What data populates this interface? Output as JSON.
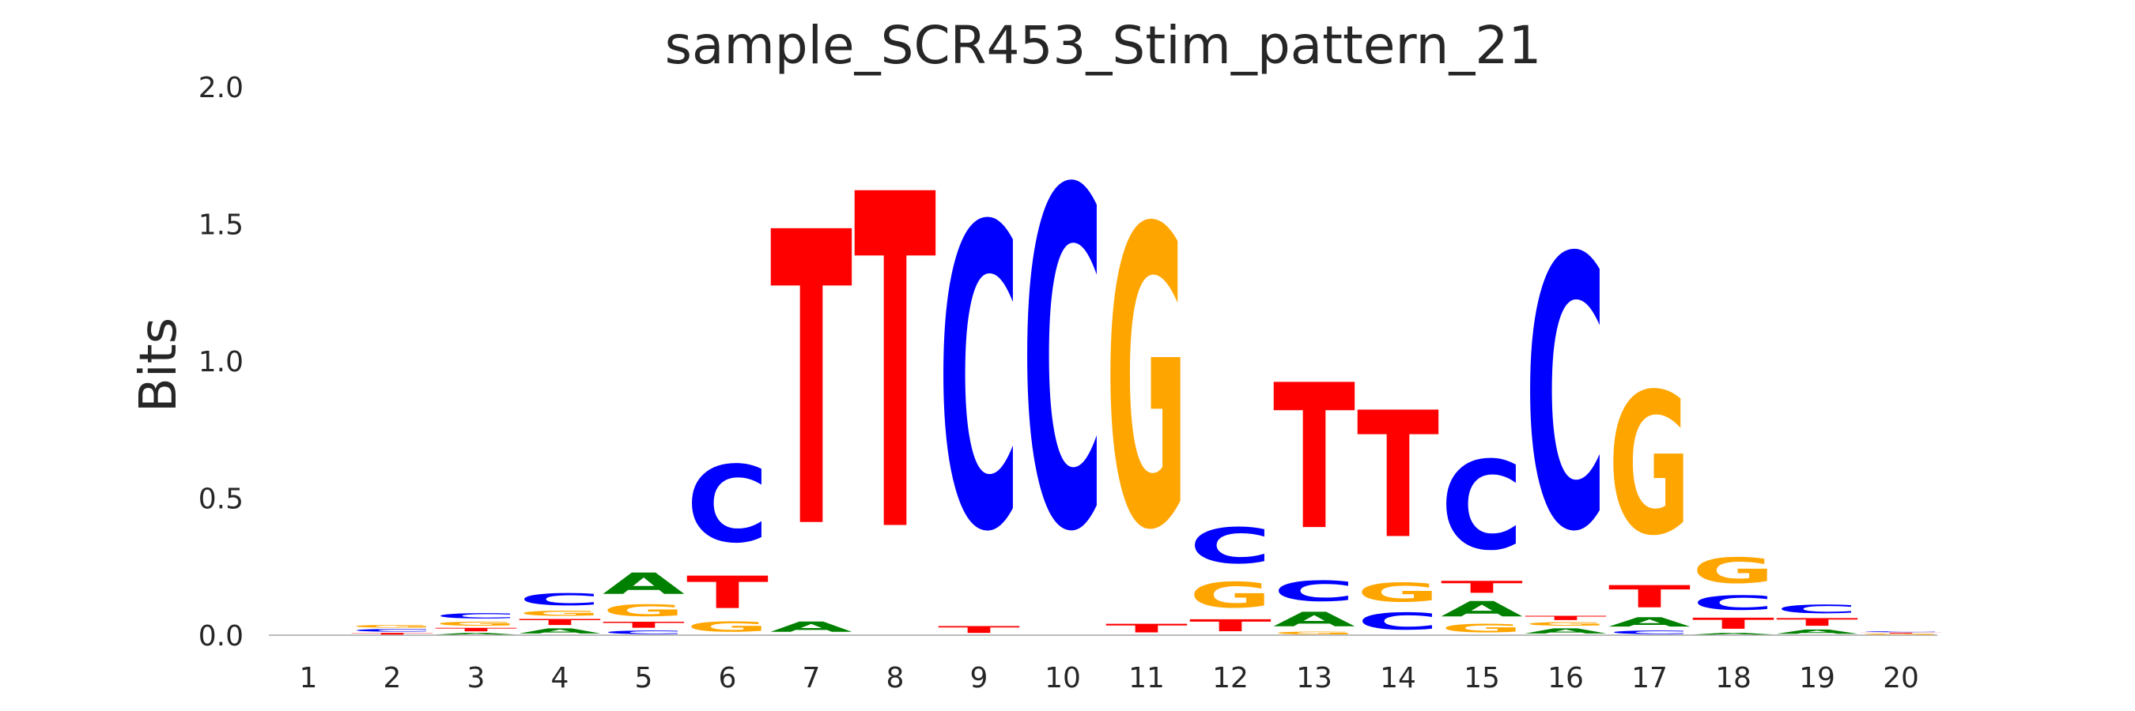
{
  "chart_data": {
    "type": "sequence-logo",
    "title": "sample_SCR453_Stim_pattern_21",
    "xlabel": "",
    "ylabel": "Bits",
    "ylim": [
      0,
      2.0
    ],
    "yticks": [
      "0.0",
      "0.5",
      "1.0",
      "1.5",
      "2.0"
    ],
    "yticks_values": [
      0,
      0.5,
      1.0,
      1.5,
      2.0
    ],
    "grid": false,
    "colors": {
      "A": "#008000",
      "C": "#0000ff",
      "G": "#ffa500",
      "T": "#ff0000"
    },
    "positions": [
      {
        "label": "1",
        "stack": []
      },
      {
        "label": "2",
        "stack": [
          [
            "T",
            0.01
          ],
          [
            "C",
            0.015
          ],
          [
            "G",
            0.015
          ]
        ]
      },
      {
        "label": "3",
        "stack": [
          [
            "A",
            0.01
          ],
          [
            "T",
            0.02
          ],
          [
            "G",
            0.025
          ],
          [
            "C",
            0.03
          ]
        ]
      },
      {
        "label": "4",
        "stack": [
          [
            "A",
            0.03
          ],
          [
            "T",
            0.035
          ],
          [
            "G",
            0.03
          ],
          [
            "C",
            0.07
          ]
        ]
      },
      {
        "label": "5",
        "stack": [
          [
            "C",
            0.02
          ],
          [
            "T",
            0.035
          ],
          [
            "G",
            0.07
          ],
          [
            "A",
            0.125
          ]
        ]
      },
      {
        "label": "6",
        "stack": [
          [
            "G",
            0.06
          ],
          [
            "T",
            0.19
          ],
          [
            "C",
            0.45
          ]
        ]
      },
      {
        "label": "7",
        "stack": [
          [
            "A",
            0.06
          ],
          [
            "T",
            1.72
          ]
        ]
      },
      {
        "label": "8",
        "stack": [
          [
            "T",
            1.96
          ]
        ]
      },
      {
        "label": "9",
        "stack": [
          [
            "T",
            0.04
          ],
          [
            "C",
            1.77
          ]
        ]
      },
      {
        "label": "10",
        "stack": [
          [
            "C",
            1.98
          ]
        ]
      },
      {
        "label": "11",
        "stack": [
          [
            "T",
            0.05
          ],
          [
            "G",
            1.75
          ]
        ]
      },
      {
        "label": "12",
        "stack": [
          [
            "T",
            0.07
          ],
          [
            "G",
            0.15
          ],
          [
            "C",
            0.21
          ]
        ]
      },
      {
        "label": "13",
        "stack": [
          [
            "G",
            0.015
          ],
          [
            "A",
            0.085
          ],
          [
            "C",
            0.12
          ],
          [
            "T",
            0.85
          ]
        ]
      },
      {
        "label": "14",
        "stack": [
          [
            "C",
            0.1
          ],
          [
            "G",
            0.11
          ],
          [
            "T",
            0.74
          ]
        ]
      },
      {
        "label": "15",
        "stack": [
          [
            "G",
            0.05
          ],
          [
            "A",
            0.09
          ],
          [
            "T",
            0.07
          ],
          [
            "C",
            0.52
          ]
        ]
      },
      {
        "label": "16",
        "stack": [
          [
            "A",
            0.03
          ],
          [
            "G",
            0.02
          ],
          [
            "T",
            0.025
          ],
          [
            "C",
            1.59
          ]
        ]
      },
      {
        "label": "17",
        "stack": [
          [
            "C",
            0.02
          ],
          [
            "A",
            0.055
          ],
          [
            "T",
            0.13
          ],
          [
            "G",
            0.83
          ]
        ]
      },
      {
        "label": "18",
        "stack": [
          [
            "A",
            0.01
          ],
          [
            "T",
            0.065
          ],
          [
            "C",
            0.085
          ],
          [
            "G",
            0.15
          ]
        ]
      },
      {
        "label": "19",
        "stack": [
          [
            "A",
            0.025
          ],
          [
            "T",
            0.045
          ],
          [
            "C",
            0.05
          ]
        ]
      },
      {
        "label": "20",
        "stack": [
          [
            "G",
            0.005
          ],
          [
            "T",
            0.005
          ],
          [
            "C",
            0.005
          ]
        ]
      }
    ]
  }
}
